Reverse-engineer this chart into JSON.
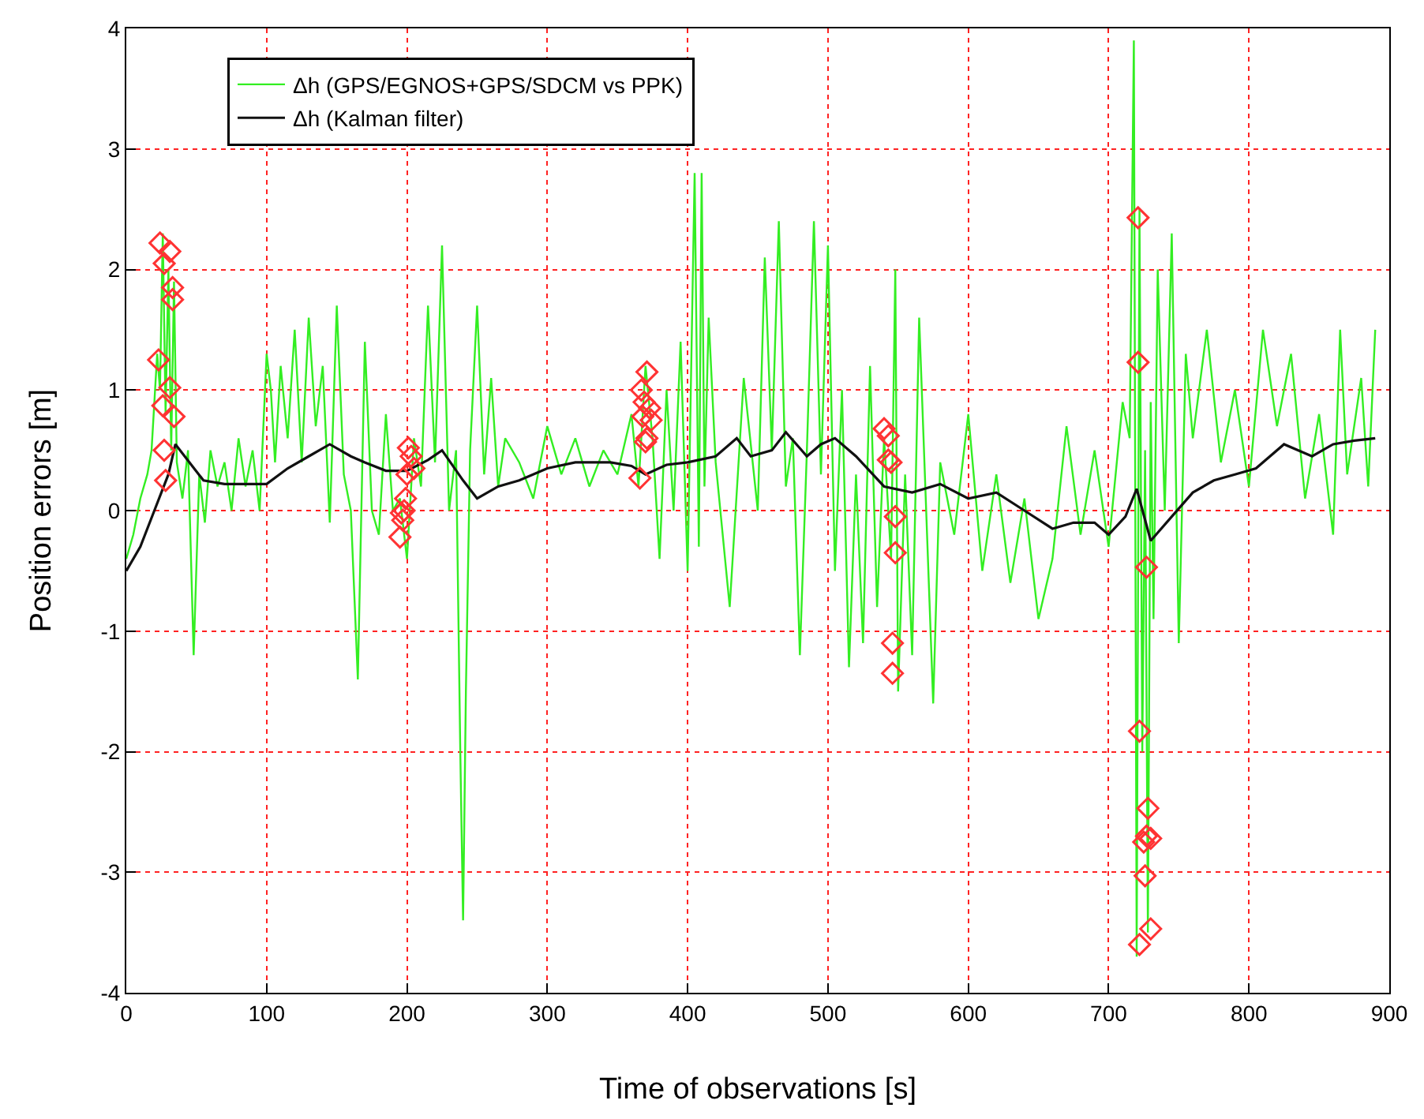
{
  "chart_data": {
    "type": "line",
    "xlabel": "Time of observations [s]",
    "ylabel": "Position errors [m]",
    "xlim": [
      0,
      900
    ],
    "xticks": [
      0,
      100,
      200,
      300,
      400,
      500,
      600,
      700,
      800,
      900
    ],
    "ylim": [
      -4,
      4
    ],
    "yticks": [
      -4,
      -3,
      -2,
      -1,
      0,
      1,
      2,
      3,
      4
    ],
    "grid": true,
    "legend": "top left",
    "marker": "none",
    "line_style": "solid",
    "series": [
      {
        "name": "Δh (GPS/EGNOS+GPS/SDCM vs PPK)",
        "color": "#33ee22",
        "x": [
          0,
          5,
          10,
          15,
          18,
          22,
          24,
          26,
          28,
          30,
          32,
          34,
          36,
          40,
          44,
          48,
          52,
          56,
          60,
          65,
          70,
          75,
          80,
          85,
          90,
          95,
          100,
          103,
          106,
          110,
          115,
          120,
          125,
          130,
          135,
          140,
          145,
          150,
          155,
          160,
          165,
          170,
          175,
          180,
          185,
          190,
          195,
          200,
          205,
          210,
          215,
          220,
          225,
          230,
          235,
          238,
          240,
          242,
          245,
          250,
          255,
          260,
          265,
          270,
          280,
          290,
          300,
          310,
          320,
          330,
          340,
          350,
          360,
          365,
          370,
          375,
          380,
          385,
          390,
          395,
          400,
          405,
          408,
          410,
          412,
          415,
          420,
          430,
          440,
          450,
          455,
          460,
          465,
          470,
          475,
          480,
          485,
          490,
          495,
          500,
          505,
          510,
          515,
          520,
          525,
          530,
          535,
          540,
          545,
          548,
          550,
          555,
          560,
          565,
          570,
          575,
          580,
          590,
          600,
          610,
          620,
          630,
          640,
          650,
          660,
          670,
          680,
          690,
          700,
          710,
          715,
          718,
          720,
          722,
          724,
          726,
          728,
          730,
          732,
          735,
          740,
          745,
          750,
          755,
          760,
          770,
          780,
          790,
          800,
          810,
          820,
          830,
          840,
          850,
          860,
          865,
          870,
          880,
          885,
          890
        ],
        "values": [
          -0.4,
          -0.2,
          0.1,
          0.3,
          0.5,
          1.3,
          1.0,
          2.3,
          0.8,
          2.0,
          0.5,
          1.9,
          0.4,
          0.1,
          0.5,
          -1.2,
          0.3,
          -0.1,
          0.5,
          0.2,
          0.4,
          0.0,
          0.6,
          0.2,
          0.5,
          0.0,
          1.3,
          1.0,
          0.4,
          1.2,
          0.6,
          1.5,
          0.4,
          1.6,
          0.7,
          1.2,
          -0.1,
          1.7,
          0.3,
          0.0,
          -1.4,
          1.4,
          0.0,
          -0.2,
          0.8,
          0.0,
          0.1,
          -0.4,
          0.6,
          0.2,
          1.7,
          0.4,
          2.2,
          0.0,
          0.5,
          -2.0,
          -3.4,
          -1.5,
          0.5,
          1.7,
          0.3,
          1.1,
          0.2,
          0.6,
          0.4,
          0.1,
          0.7,
          0.3,
          0.6,
          0.2,
          0.5,
          0.3,
          0.8,
          0.2,
          1.2,
          0.6,
          -0.4,
          1.0,
          0.0,
          1.4,
          -0.5,
          2.8,
          -0.3,
          2.8,
          0.2,
          1.6,
          0.4,
          -0.8,
          1.1,
          0.0,
          2.1,
          0.5,
          2.4,
          0.2,
          0.6,
          -1.2,
          0.5,
          2.4,
          0.3,
          2.2,
          -0.5,
          1.0,
          -1.3,
          0.3,
          -1.1,
          1.2,
          -0.8,
          0.6,
          -0.4,
          2.0,
          -1.5,
          0.3,
          -1.2,
          1.6,
          0.0,
          -1.6,
          0.4,
          -0.2,
          0.8,
          -0.5,
          0.3,
          -0.6,
          0.1,
          -0.9,
          -0.4,
          0.7,
          -0.2,
          0.5,
          -0.3,
          0.9,
          0.6,
          3.9,
          -3.7,
          2.5,
          -2.0,
          0.5,
          -3.5,
          0.9,
          -0.9,
          2.0,
          0.0,
          2.3,
          -1.1,
          1.3,
          0.6,
          1.5,
          0.4,
          1.0,
          0.2,
          1.5,
          0.7,
          1.3,
          0.1,
          0.8,
          -0.2,
          1.5,
          0.3,
          1.1,
          0.2,
          1.5
        ]
      },
      {
        "name": "Δh (Kalman filter)",
        "color": "#111111",
        "x": [
          0,
          10,
          20,
          30,
          35,
          45,
          55,
          70,
          100,
          115,
          130,
          145,
          160,
          170,
          185,
          200,
          215,
          225,
          240,
          250,
          265,
          280,
          300,
          320,
          345,
          360,
          370,
          385,
          400,
          420,
          435,
          445,
          460,
          470,
          485,
          495,
          505,
          520,
          540,
          560,
          580,
          600,
          620,
          640,
          660,
          675,
          690,
          700,
          712,
          720,
          730,
          745,
          760,
          775,
          790,
          805,
          825,
          845,
          860,
          875,
          890
        ],
        "values": [
          -0.5,
          -0.3,
          0.0,
          0.3,
          0.55,
          0.4,
          0.25,
          0.22,
          0.22,
          0.35,
          0.45,
          0.55,
          0.45,
          0.4,
          0.33,
          0.33,
          0.42,
          0.5,
          0.25,
          0.1,
          0.2,
          0.25,
          0.35,
          0.4,
          0.4,
          0.37,
          0.3,
          0.38,
          0.4,
          0.45,
          0.6,
          0.45,
          0.5,
          0.65,
          0.45,
          0.55,
          0.6,
          0.45,
          0.2,
          0.15,
          0.22,
          0.1,
          0.15,
          0.0,
          -0.15,
          -0.1,
          -0.1,
          -0.2,
          -0.05,
          0.18,
          -0.25,
          -0.05,
          0.15,
          0.25,
          0.3,
          0.35,
          0.55,
          0.45,
          0.55,
          0.58,
          0.6
        ]
      },
      {
        "type": "scatter",
        "marker": "diamond",
        "color": "#ff3333",
        "x": [
          24,
          27,
          31,
          33,
          33,
          23,
          31,
          26,
          34,
          27,
          28,
          201,
          203,
          205,
          200,
          199,
          198,
          196,
          197,
          195,
          371,
          367,
          369,
          373,
          368,
          374,
          371,
          370,
          366,
          540,
          543,
          543,
          545,
          548,
          548,
          546,
          546,
          721,
          721,
          727,
          722,
          728,
          727,
          725,
          730,
          726,
          730,
          722
        ],
        "values": [
          2.22,
          2.05,
          2.15,
          1.85,
          1.75,
          1.25,
          1.02,
          0.87,
          0.78,
          0.5,
          0.25,
          0.52,
          0.45,
          0.35,
          0.3,
          0.1,
          0.0,
          -0.02,
          -0.08,
          -0.22,
          1.15,
          1.0,
          0.9,
          0.85,
          0.78,
          0.75,
          0.6,
          0.57,
          0.27,
          0.68,
          0.62,
          0.42,
          0.4,
          -0.05,
          -0.35,
          -1.1,
          -1.35,
          2.43,
          1.23,
          -0.47,
          -1.83,
          -2.47,
          -2.7,
          -2.75,
          -2.72,
          -3.03,
          -3.47,
          -3.6
        ]
      }
    ]
  }
}
